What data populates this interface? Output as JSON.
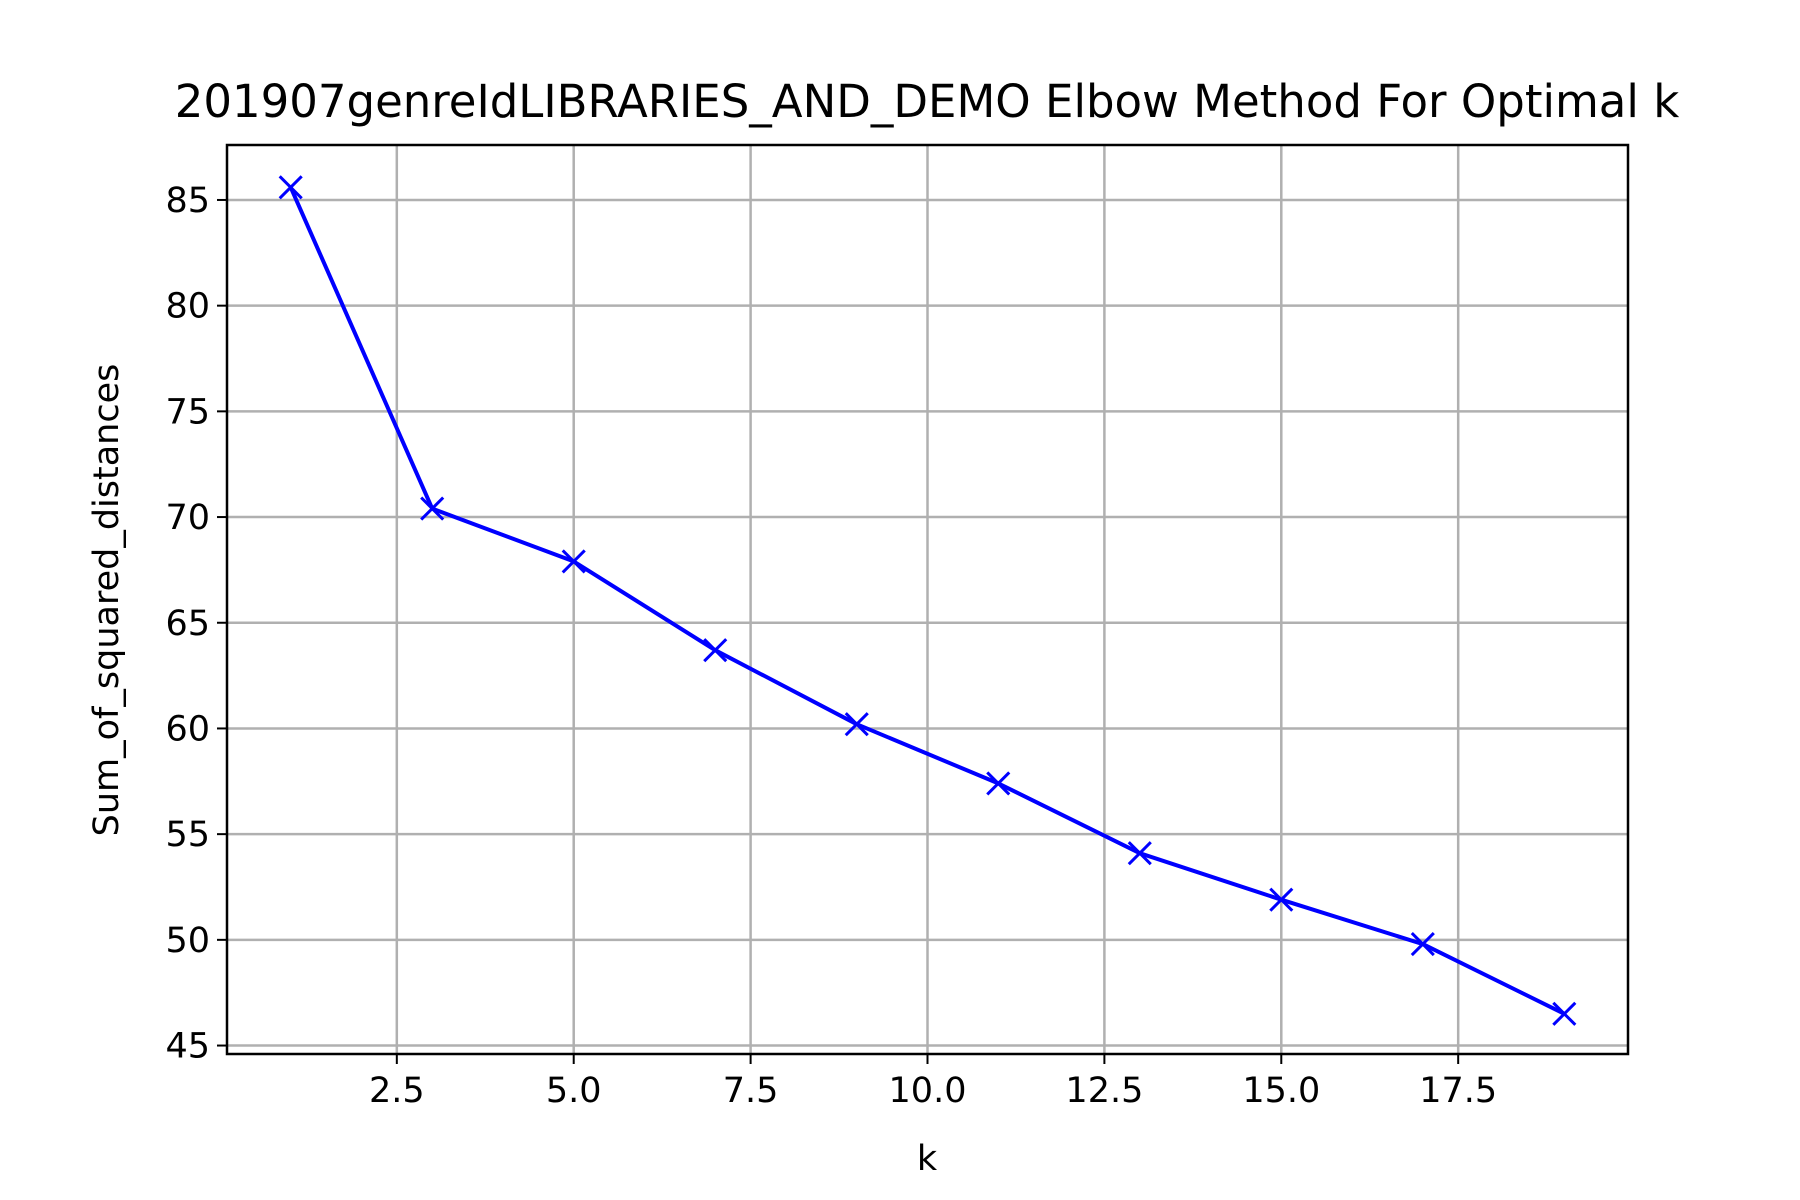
{
  "chart_data": {
    "type": "line",
    "title": "201907genreIdLIBRARIES_AND_DEMO Elbow Method For Optimal k",
    "xlabel": "k",
    "ylabel": "Sum_of_squared_distances",
    "xlim": [
      0.1,
      19.9
    ],
    "ylim": [
      44.6,
      87.6
    ],
    "xticks": [
      2.5,
      5.0,
      7.5,
      10.0,
      12.5,
      15.0,
      17.5
    ],
    "xtick_labels": [
      "2.5",
      "5.0",
      "7.5",
      "10.0",
      "12.5",
      "15.0",
      "17.5"
    ],
    "yticks": [
      45,
      50,
      55,
      60,
      65,
      70,
      75,
      80,
      85
    ],
    "ytick_labels": [
      "45",
      "50",
      "55",
      "60",
      "65",
      "70",
      "75",
      "80",
      "85"
    ],
    "grid": true,
    "line_color": "#0000ff",
    "marker": "x",
    "series": [
      {
        "x": [
          1,
          3,
          5,
          7,
          9,
          11,
          13,
          15,
          17,
          19
        ],
        "values": [
          85.6,
          70.4,
          67.9,
          63.7,
          60.2,
          57.4,
          54.1,
          51.9,
          49.8,
          46.5
        ]
      }
    ]
  }
}
